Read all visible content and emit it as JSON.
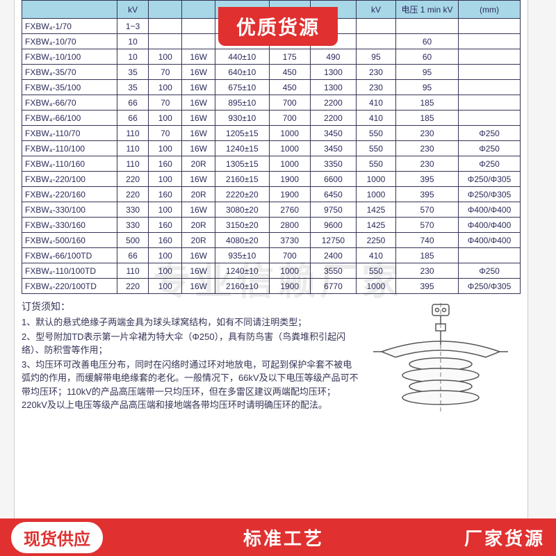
{
  "banner": "优质货源",
  "watermark": "专业信赖厂家",
  "footer": {
    "left": "现货供应",
    "mid": "标准工艺",
    "right": "厂家货源"
  },
  "table": {
    "headers": [
      "",
      "kV",
      "",
      "",
      "",
      "",
      "",
      "kV",
      "电压 1 min kV",
      "(mm)"
    ],
    "rows": [
      [
        "FXBW₄-1/70",
        "1~3",
        "",
        "",
        "",
        "",
        "",
        "",
        "",
        ""
      ],
      [
        "FXBW₄-10/70",
        "10",
        "",
        "",
        "",
        "",
        "",
        "",
        "60",
        ""
      ],
      [
        "FXBW₄-10/100",
        "10",
        "100",
        "16W",
        "440±10",
        "175",
        "490",
        "95",
        "60",
        ""
      ],
      [
        "FXBW₄-35/70",
        "35",
        "70",
        "16W",
        "640±10",
        "450",
        "1300",
        "230",
        "95",
        ""
      ],
      [
        "FXBW₄-35/100",
        "35",
        "100",
        "16W",
        "675±10",
        "450",
        "1300",
        "230",
        "95",
        ""
      ],
      [
        "FXBW₄-66/70",
        "66",
        "70",
        "16W",
        "895±10",
        "700",
        "2200",
        "410",
        "185",
        ""
      ],
      [
        "FXBW₄-66/100",
        "66",
        "100",
        "16W",
        "930±10",
        "700",
        "2200",
        "410",
        "185",
        ""
      ],
      [
        "FXBW₄-110/70",
        "110",
        "70",
        "16W",
        "1205±15",
        "1000",
        "3450",
        "550",
        "230",
        "Φ250"
      ],
      [
        "FXBW₄-110/100",
        "110",
        "100",
        "16W",
        "1240±15",
        "1000",
        "3450",
        "550",
        "230",
        "Φ250"
      ],
      [
        "FXBW₄-110/160",
        "110",
        "160",
        "20R",
        "1305±15",
        "1000",
        "3350",
        "550",
        "230",
        "Φ250"
      ],
      [
        "FXBW₄-220/100",
        "220",
        "100",
        "16W",
        "2160±15",
        "1900",
        "6600",
        "1000",
        "395",
        "Φ250/Φ305"
      ],
      [
        "FXBW₄-220/160",
        "220",
        "160",
        "20R",
        "2220±20",
        "1900",
        "6450",
        "1000",
        "395",
        "Φ250/Φ305"
      ],
      [
        "FXBW₄-330/100",
        "330",
        "100",
        "16W",
        "3080±20",
        "2760",
        "9750",
        "1425",
        "570",
        "Φ400/Φ400"
      ],
      [
        "FXBW₄-330/160",
        "330",
        "160",
        "20R",
        "3150±20",
        "2800",
        "9600",
        "1425",
        "570",
        "Φ400/Φ400"
      ],
      [
        "FXBW₄-500/160",
        "500",
        "160",
        "20R",
        "4080±20",
        "3730",
        "12750",
        "2250",
        "740",
        "Φ400/Φ400"
      ],
      [
        "FXBW₄-66/100TD",
        "66",
        "100",
        "16W",
        "935±10",
        "700",
        "2400",
        "410",
        "185",
        ""
      ],
      [
        "FXBW₄-110/100TD",
        "110",
        "100",
        "16W",
        "1240±10",
        "1000",
        "3550",
        "550",
        "230",
        "Φ250"
      ],
      [
        "FXBW₄-220/100TD",
        "220",
        "100",
        "16W",
        "2160±10",
        "1900",
        "6770",
        "1000",
        "395",
        "Φ250/Φ305"
      ]
    ],
    "col_widths": [
      "120",
      "40",
      "42",
      "42",
      "68",
      "52",
      "58",
      "50",
      "78",
      "78"
    ]
  },
  "notes": {
    "title": "订货须知：",
    "lines": [
      "1、默认的悬式绝缘子两端金具为球头球窝结构，如有不同请注明类型；",
      "2、型号附加TD表示第一片伞裙为特大伞（Φ250），具有防鸟害（鸟粪堆积引起闪络）、防积雪等作用；",
      "3、均压环可改善电压分布，同时在闪络时通过环对地放电，可起到保护伞套不被电弧灼的作用，而缓解带电绝缘套的老化。一般情况下，66kV及以下电压等级产品可不带均压环；110kV的产品高压端带一只均压环，但在多雷区建议两端配均压环；220kV及以上电压等级产品高压端和接地端各带均压环时请明确压环的配法。"
    ]
  },
  "colors": {
    "header_bg": "#a8d8e8",
    "border": "#333355",
    "text": "#2a2a5a",
    "accent": "#e03030"
  }
}
